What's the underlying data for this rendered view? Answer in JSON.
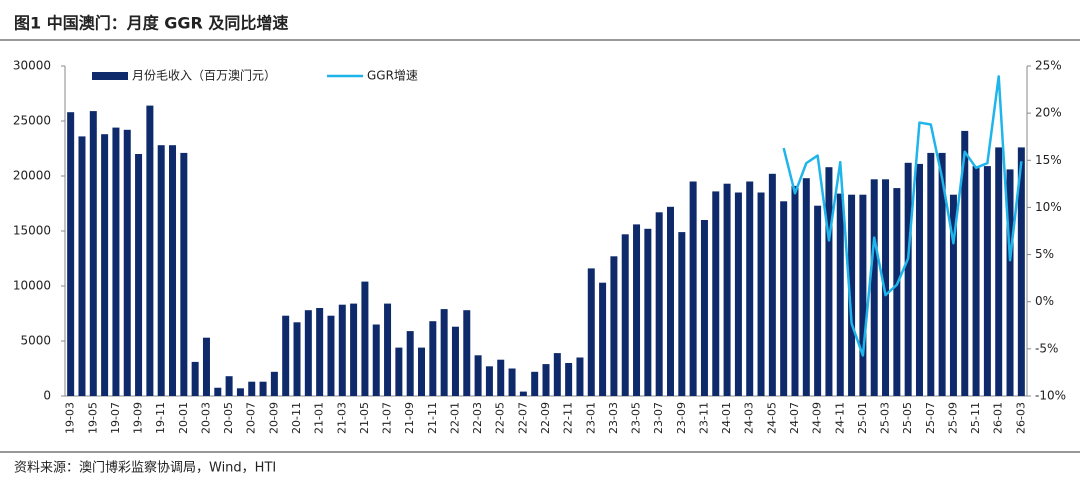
{
  "chart_data": {
    "type": "bar_line",
    "title": "图1  中国澳门：月度 GGR 及同比增速",
    "source": "资料来源：澳门博彩监察协调局，Wind，HTI",
    "categories": [
      "19-03",
      null,
      "19-05",
      null,
      "19-07",
      null,
      "19-09",
      null,
      "19-11",
      null,
      "20-01",
      null,
      "20-03",
      null,
      "20-05",
      null,
      "20-07",
      null,
      "20-09",
      null,
      "20-11",
      null,
      "21-01",
      null,
      "21-03",
      null,
      "21-05",
      null,
      "21-07",
      null,
      "21-09",
      null,
      "21-11",
      null,
      "22-01",
      null,
      "22-03",
      null,
      "22-05",
      null,
      "22-07",
      null,
      "22-09",
      null,
      "22-11",
      null,
      "23-01",
      null,
      "23-03",
      null,
      "23-05",
      null,
      "23-07",
      null,
      "23-09",
      null,
      "23-11",
      null,
      "24-01",
      null,
      "24-03",
      null,
      "24-05",
      null,
      "24-07",
      null,
      "24-09",
      null,
      "24-11",
      null,
      "25-01",
      null,
      "25-03",
      null,
      "25-05",
      null,
      "25-07",
      null,
      "25-09",
      null,
      "25-11",
      null,
      "26-01",
      null,
      "26-03"
    ],
    "series": [
      {
        "name": "月份毛收入（百万澳门元）",
        "type": "bar",
        "color": "#0f2a6b",
        "values": [
          25800,
          23600,
          25900,
          23800,
          24400,
          24200,
          22000,
          26400,
          22800,
          22800,
          22100,
          3100,
          5300,
          750,
          1800,
          700,
          1300,
          1300,
          2200,
          7300,
          6700,
          7800,
          8000,
          7300,
          8300,
          8400,
          10400,
          6500,
          8400,
          4400,
          5900,
          4400,
          6800,
          7900,
          6300,
          7800,
          3700,
          2700,
          3300,
          2500,
          400,
          2200,
          2900,
          3900,
          3000,
          3500,
          11600,
          10300,
          12700,
          14700,
          15600,
          15200,
          16700,
          17200,
          14900,
          19500,
          16000,
          18600,
          19300,
          18500,
          19500,
          18500,
          20200,
          17700,
          19100,
          19800,
          17300,
          20800,
          18400,
          18300,
          18300,
          19700,
          19700,
          18900,
          21200,
          21100,
          22100,
          22100,
          18300,
          24100,
          20900,
          20900,
          22600,
          20600,
          22600
        ]
      },
      {
        "name": "GGR增速",
        "type": "line",
        "axis": "y2",
        "color": "#1fb5ea",
        "values": [
          null,
          null,
          null,
          null,
          null,
          null,
          null,
          null,
          null,
          null,
          null,
          null,
          null,
          null,
          null,
          null,
          null,
          null,
          null,
          null,
          null,
          null,
          null,
          null,
          null,
          null,
          null,
          null,
          null,
          null,
          null,
          null,
          null,
          null,
          null,
          null,
          null,
          null,
          null,
          null,
          null,
          null,
          null,
          null,
          null,
          null,
          null,
          null,
          null,
          null,
          null,
          null,
          null,
          null,
          null,
          null,
          null,
          null,
          null,
          null,
          null,
          null,
          null,
          16.3,
          11.5,
          14.7,
          15.5,
          6.5,
          14.8,
          -2.3,
          -5.7,
          6.8,
          0.7,
          1.8,
          4.6,
          19.0,
          18.8,
          13.1,
          6.2,
          15.9,
          14.2,
          14.7,
          23.9,
          4.4,
          14.9
        ]
      }
    ],
    "ylim": [
      0,
      30000
    ],
    "yticks": [
      0,
      5000,
      10000,
      15000,
      20000,
      25000,
      30000
    ],
    "y2lim": [
      -10,
      25
    ],
    "y2ticks": [
      {
        "value": -10,
        "label": "-10%"
      },
      {
        "value": -5,
        "label": "-5%"
      },
      {
        "value": 0,
        "label": "0%"
      },
      {
        "value": 5,
        "label": "5%"
      },
      {
        "value": 10,
        "label": "10%"
      },
      {
        "value": 15,
        "label": "15%"
      },
      {
        "value": 20,
        "label": "20%"
      },
      {
        "value": 25,
        "label": "25%"
      }
    ],
    "legend": "top-left"
  }
}
